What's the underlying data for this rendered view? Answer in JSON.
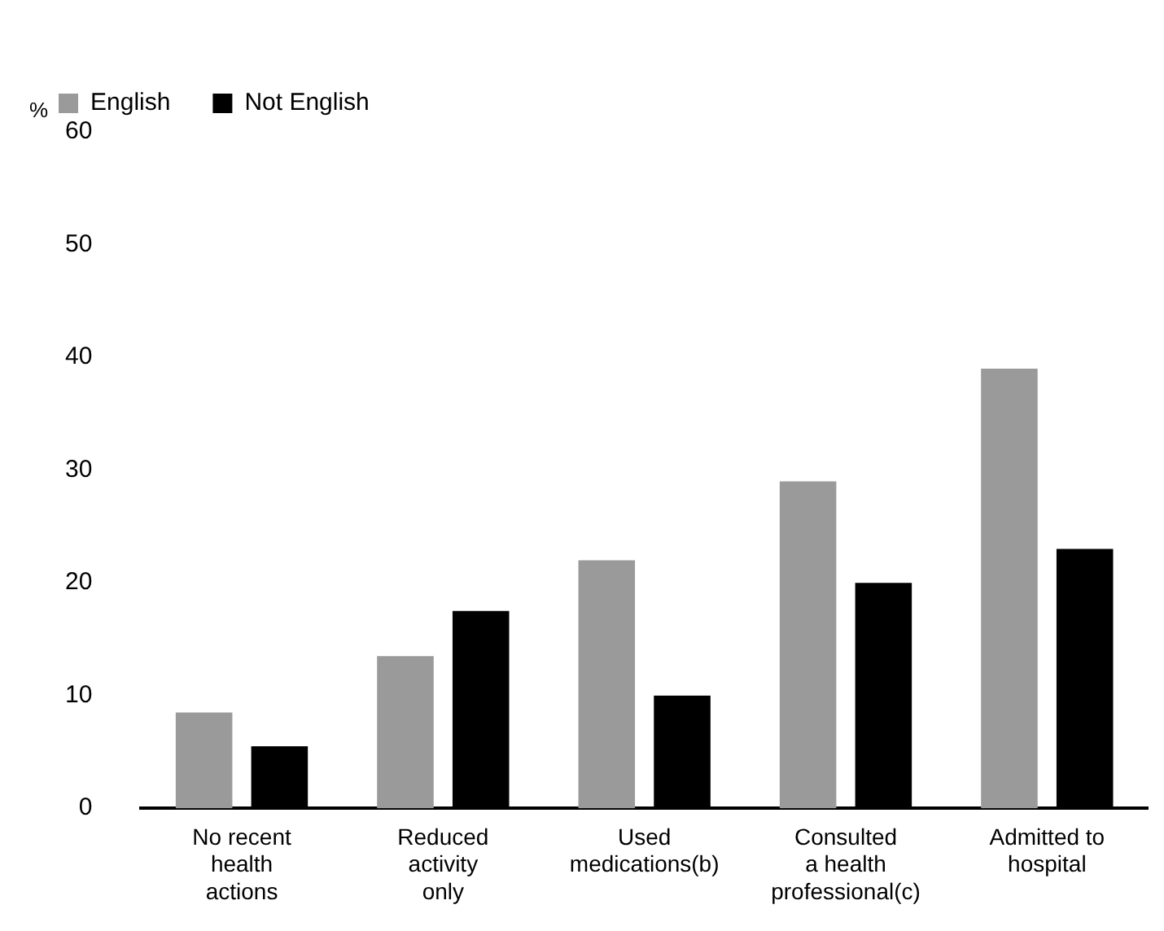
{
  "chart_data": {
    "type": "bar",
    "ylabel": "%",
    "categories": [
      "No recent\nhealth\nactions",
      "Reduced\nactivity\nonly",
      "Used\nmedications(b)",
      "Consulted\na health\nprofessional(c)",
      "Admitted to\nhospital"
    ],
    "series": [
      {
        "name": "English",
        "color": "#9a9a9a",
        "values": [
          8.5,
          13.5,
          22,
          29,
          39
        ]
      },
      {
        "name": "Not English",
        "color": "#000000",
        "values": [
          5.5,
          17.5,
          10,
          20,
          23
        ]
      }
    ],
    "ylim": [
      0,
      60
    ],
    "yticks": [
      0,
      10,
      20,
      30,
      40,
      50,
      60
    ],
    "grid": false,
    "legend": "top left"
  }
}
